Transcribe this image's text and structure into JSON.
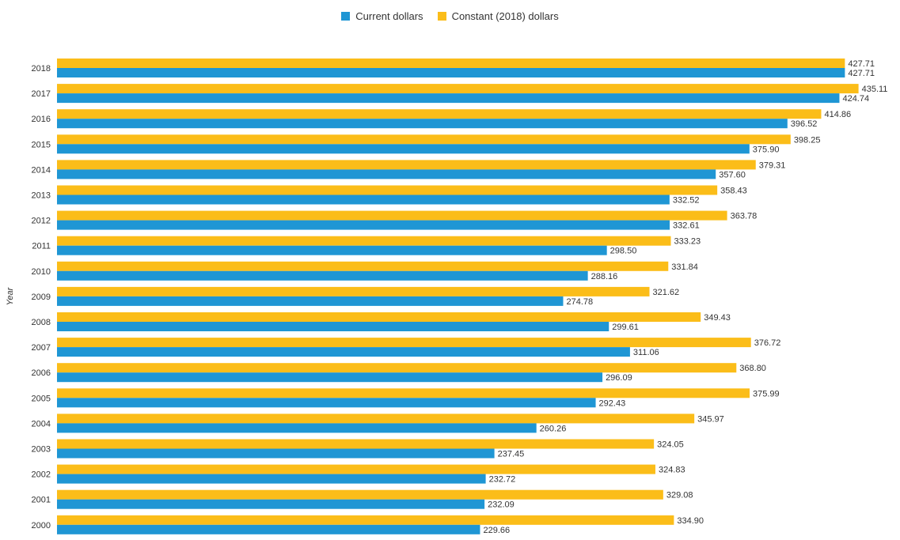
{
  "chart_data": {
    "type": "bar",
    "orientation": "horizontal",
    "title": "",
    "ylabel": "Year",
    "xlabel": "",
    "xlim": [
      0,
      437
    ],
    "grid": false,
    "legend_position": "top-center",
    "categories": [
      "2018",
      "2017",
      "2016",
      "2015",
      "2014",
      "2013",
      "2012",
      "2011",
      "2010",
      "2009",
      "2008",
      "2007",
      "2006",
      "2005",
      "2004",
      "2003",
      "2002",
      "2001",
      "2000"
    ],
    "series": [
      {
        "name": "Constant (2018) dollars",
        "color": "#fbbd19",
        "values": [
          427.71,
          435.11,
          414.86,
          398.25,
          379.31,
          358.43,
          363.78,
          333.23,
          331.84,
          321.62,
          349.43,
          376.72,
          368.8,
          375.99,
          345.97,
          324.05,
          324.83,
          329.08,
          334.9
        ],
        "labels": [
          "427.71",
          "435.11",
          "414.86",
          "398.25",
          "379.31",
          "358.43",
          "363.78",
          "333.23",
          "331.84",
          "321.62",
          "349.43",
          "376.72",
          "368.80",
          "375.99",
          "345.97",
          "324.05",
          "324.83",
          "329.08",
          "334.90"
        ]
      },
      {
        "name": "Current dollars",
        "color": "#1f96d4",
        "values": [
          427.71,
          424.74,
          396.52,
          375.9,
          357.6,
          332.52,
          332.61,
          298.5,
          288.16,
          274.78,
          299.61,
          311.06,
          296.09,
          292.43,
          260.26,
          237.45,
          232.72,
          232.09,
          229.66
        ],
        "labels": [
          "427.71",
          "424.74",
          "396.52",
          "375.90",
          "357.60",
          "332.52",
          "332.61",
          "298.50",
          "288.16",
          "274.78",
          "299.61",
          "311.06",
          "296.09",
          "292.43",
          "260.26",
          "237.45",
          "232.72",
          "232.09",
          "229.66"
        ]
      }
    ]
  },
  "legend": {
    "items": [
      {
        "label": "Current dollars",
        "color": "#1f96d4"
      },
      {
        "label": "Constant (2018) dollars",
        "color": "#fbbd19"
      }
    ]
  }
}
